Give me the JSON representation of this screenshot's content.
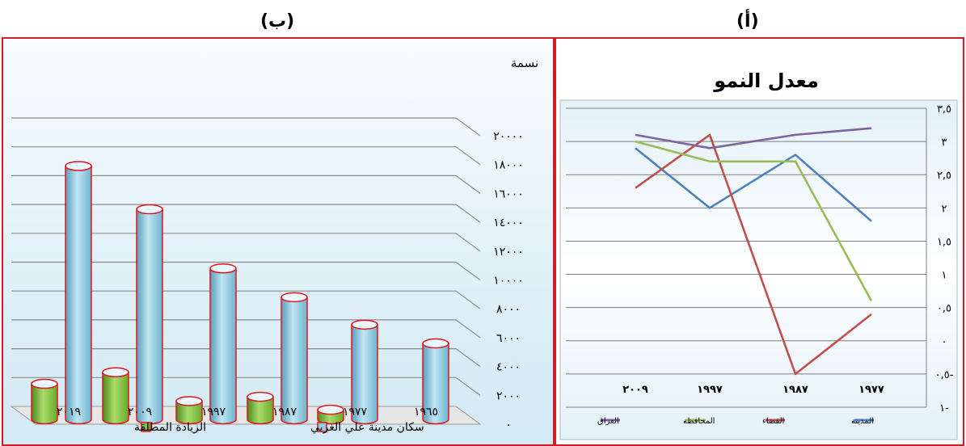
{
  "panel_labels": {
    "b": "(ب)",
    "a": "(أ)"
  },
  "chart_data": [
    {
      "panel": "(ب)",
      "type": "bar",
      "title": "",
      "ylabel": "نسمة",
      "categories": [
        "٢٠١٩",
        "٢٠٠٩",
        "١٩٩٧",
        "١٩٨٧",
        "١٩٧٧",
        "١٩٦٥"
      ],
      "yticks": [
        "٠",
        "٢٠٠٠",
        "٤٠٠٠",
        "٦٠٠٠",
        "٨٠٠٠",
        "١٠٠٠٠",
        "١٢٠٠٠",
        "١٤٠٠٠",
        "١٦٠٠٠",
        "١٨٠٠٠",
        "٢٠٠٠٠"
      ],
      "ylim": [
        0,
        20000
      ],
      "series": [
        {
          "name": "الزيادة المطلقة",
          "color": "#7ec13c",
          "values": [
            2800,
            3600,
            1600,
            1900,
            1000,
            null
          ]
        },
        {
          "name": "سكان مدينة علي الغربي",
          "color": "#8ccfe6",
          "values": [
            17900,
            14900,
            10800,
            8800,
            6900,
            5600
          ]
        }
      ],
      "legend": "bottom"
    },
    {
      "panel": "(أ)",
      "type": "line",
      "title": "معدل النمو",
      "categories": [
        "٢٠٠٩",
        "١٩٩٧",
        "١٩٨٧",
        "١٩٧٧"
      ],
      "yticks": [
        "١-",
        "٠,٥-",
        "٠",
        "٠,٥",
        "١",
        "١,٥",
        "٢",
        "٢,٥",
        "٣",
        "٣,٥"
      ],
      "ylim": [
        -1,
        3.5
      ],
      "series": [
        {
          "name": "المدينة",
          "color": "#4f81bd",
          "values": [
            2.9,
            2.0,
            2.8,
            1.8
          ]
        },
        {
          "name": "القضاء",
          "color": "#c0504d",
          "values": [
            2.3,
            3.1,
            -0.5,
            0.4
          ]
        },
        {
          "name": "المحافظة",
          "color": "#9bbb59",
          "values": [
            3.0,
            2.7,
            2.7,
            0.6
          ]
        },
        {
          "name": "العراق",
          "color": "#8064a2",
          "values": [
            3.1,
            2.9,
            3.1,
            3.2
          ]
        }
      ],
      "legend": "bottom"
    }
  ]
}
